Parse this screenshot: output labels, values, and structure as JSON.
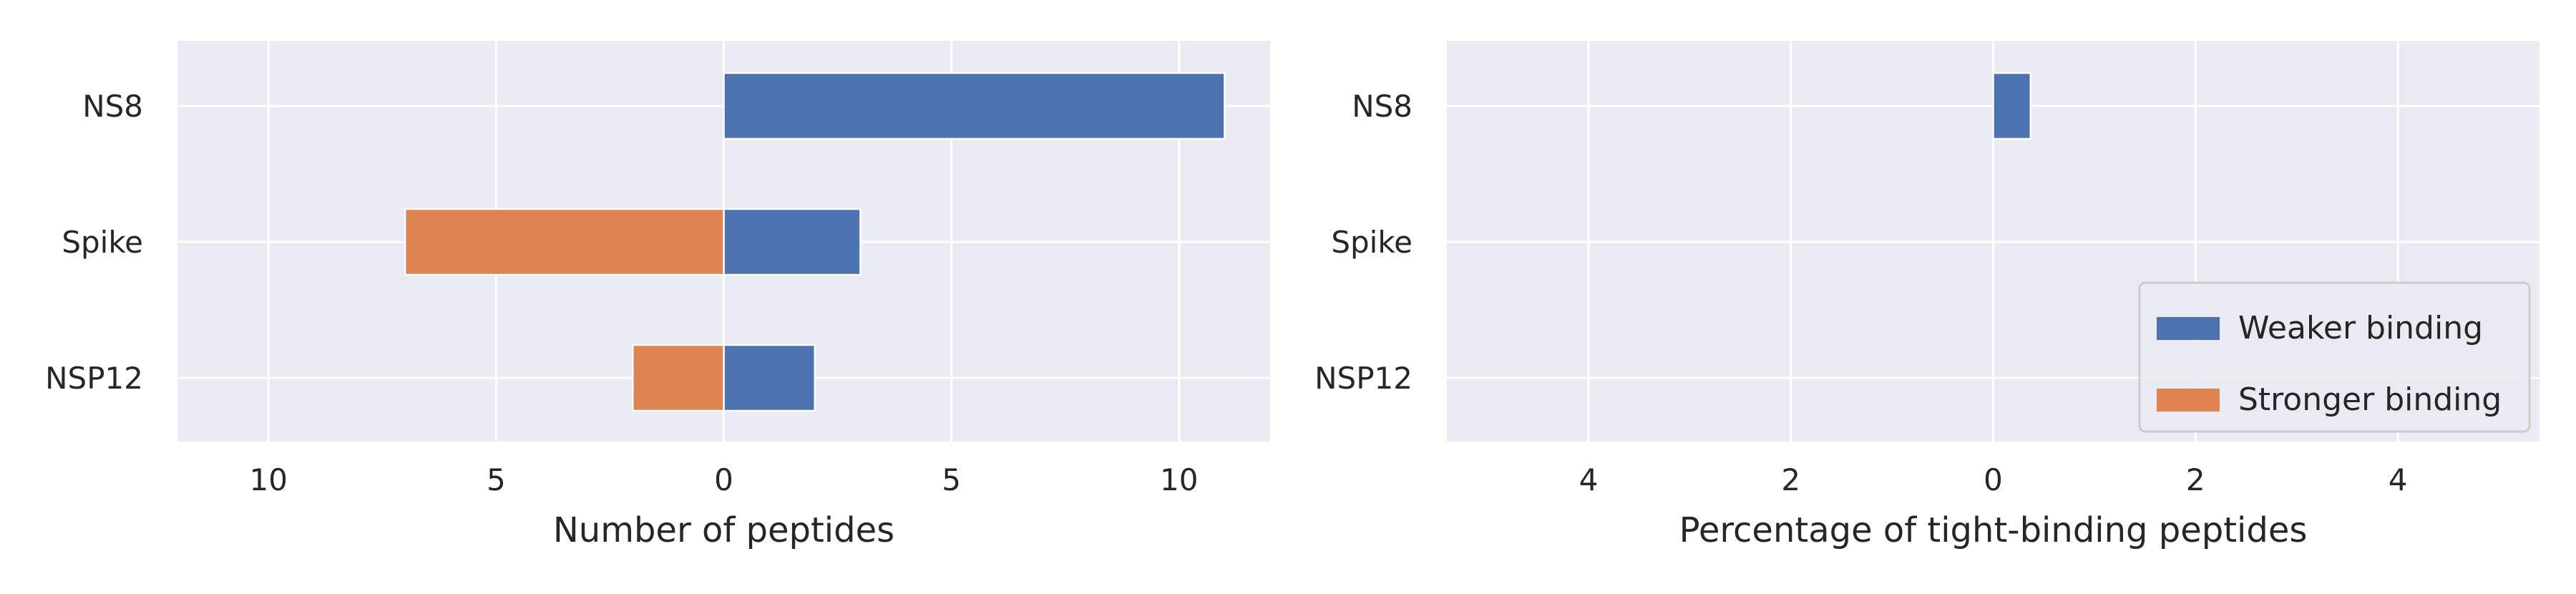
{
  "chart_data": [
    {
      "type": "bar",
      "orientation": "horizontal",
      "categories": [
        "NS8",
        "Spike",
        "NSP12"
      ],
      "series": [
        {
          "name": "Weaker binding",
          "values": [
            11,
            3,
            2
          ],
          "color": "#4c72b0"
        },
        {
          "name": "Stronger binding",
          "values": [
            0,
            7,
            2
          ],
          "color": "#dd8452"
        }
      ],
      "xlabel": "Number of peptides",
      "xlim": [
        -12,
        12
      ],
      "xticks": [
        -10,
        -5,
        0,
        5,
        10
      ],
      "xtick_labels": [
        "10",
        "5",
        "0",
        "5",
        "10"
      ],
      "grid": true
    },
    {
      "type": "bar",
      "orientation": "horizontal",
      "categories": [
        "NS8",
        "Spike",
        "NSP12"
      ],
      "series": [
        {
          "name": "Weaker binding",
          "values": [
            0.37,
            0,
            0
          ],
          "color": "#4c72b0"
        },
        {
          "name": "Stronger binding",
          "values": [
            0,
            0,
            0
          ],
          "color": "#dd8452"
        }
      ],
      "xlabel": "Percentage of tight-binding peptides",
      "xlim": [
        -5.4,
        5.4
      ],
      "xticks": [
        -4,
        -2,
        0,
        2,
        4
      ],
      "xtick_labels": [
        "4",
        "2",
        "0",
        "2",
        "4"
      ],
      "grid": true,
      "legend": {
        "placement": "lower-right",
        "entries": [
          "Weaker binding",
          "Stronger binding"
        ]
      }
    }
  ]
}
